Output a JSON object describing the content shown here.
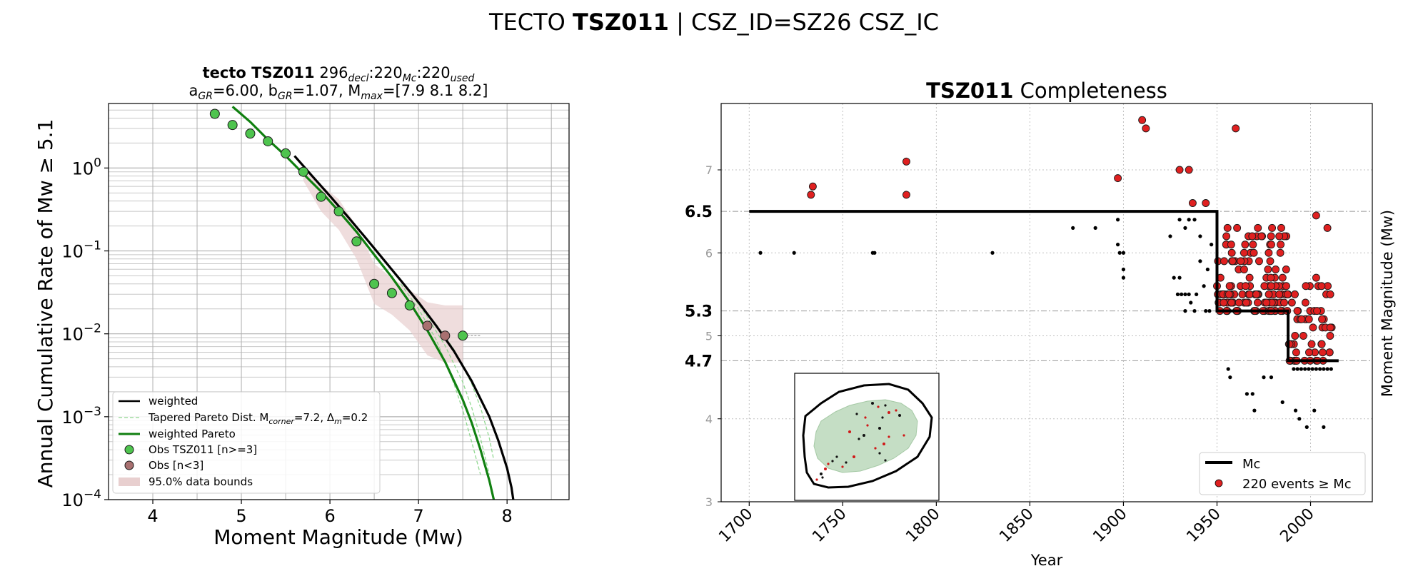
{
  "figure": {
    "suptitle": {
      "prefix": "TECTO ",
      "bold": "TSZ011",
      "suffix": " | CSZ_ID=SZ26 CSZ_IC"
    }
  },
  "chart_data": [
    {
      "type": "scatter",
      "panel": "left",
      "title_line1": {
        "bold": "tecto TSZ011",
        "a": "296",
        "a_sub": "decl",
        "b": ":220",
        "b_sub": "Mc",
        "c": ":220",
        "c_sub": "used"
      },
      "title_line2": {
        "p1": "a",
        "p1_sub": "GR",
        "p2": "=6.00,  b",
        "p2_sub": "GR",
        "p3": "=1.07, M",
        "p3_sub": "max",
        "p4": "=[7.9 8.1 8.2]"
      },
      "xlabel": "Moment Magnitude (Mw)",
      "ylabel": "Annual Cumulative Rate of Mw  ≥  5.1",
      "xlim": [
        3.5,
        8.7
      ],
      "ylim": [
        0.0001,
        6
      ],
      "yscale": "log",
      "x_ticks": [
        "4",
        "5",
        "6",
        "7",
        "8"
      ],
      "y_ticks": [
        {
          "base": "10",
          "exp": "0"
        },
        {
          "base": "10",
          "exp": "−1"
        },
        {
          "base": "10",
          "exp": "−2"
        },
        {
          "base": "10",
          "exp": "−3"
        },
        {
          "base": "10",
          "exp": "−4"
        }
      ],
      "grid": true,
      "series": [
        {
          "name": "weighted",
          "kind": "line",
          "color": "#000000",
          "x": [
            5.6,
            5.8,
            6.0,
            6.2,
            6.4,
            6.6,
            6.8,
            7.0,
            7.2,
            7.4,
            7.6,
            7.8,
            7.9,
            8.0,
            8.05,
            8.07
          ],
          "y": [
            1.4,
            0.8,
            0.46,
            0.26,
            0.145,
            0.08,
            0.044,
            0.024,
            0.0125,
            0.0062,
            0.0027,
            0.001,
            0.00052,
            0.00024,
            0.00014,
            0.0001
          ]
        },
        {
          "name": "Tapered Pareto Dist. M",
          "name_sub": "corner",
          "name_mid": "=7.2, Δ",
          "name_sub2": "m",
          "name_end": "=0.2",
          "kind": "dashed-line",
          "color": "#90d890",
          "curves": [
            {
              "x": [
                6.8,
                7.0,
                7.2,
                7.4,
                7.5,
                7.6,
                7.7
              ],
              "y": [
                0.04,
                0.02,
                0.0085,
                0.0025,
                0.0012,
                0.0005,
                0.0002
              ]
            },
            {
              "x": [
                6.9,
                7.1,
                7.3,
                7.5,
                7.6,
                7.7,
                7.8
              ],
              "y": [
                0.032,
                0.016,
                0.0072,
                0.0026,
                0.0013,
                0.00055,
                0.0002
              ]
            },
            {
              "x": [
                7.0,
                7.2,
                7.4,
                7.6,
                7.7,
                7.8,
                7.85
              ],
              "y": [
                0.024,
                0.013,
                0.0065,
                0.0025,
                0.0013,
                0.00055,
                0.0003
              ]
            }
          ]
        },
        {
          "name": "weighted Pareto",
          "kind": "line",
          "color": "#108010",
          "x": [
            4.9,
            5.1,
            5.3,
            5.5,
            5.7,
            5.9,
            6.1,
            6.3,
            6.5,
            6.7,
            6.9,
            7.1,
            7.3,
            7.5,
            7.6,
            7.7,
            7.8,
            7.85
          ],
          "y": [
            5.5,
            3.6,
            2.2,
            1.4,
            0.85,
            0.52,
            0.3,
            0.17,
            0.09,
            0.048,
            0.024,
            0.011,
            0.0046,
            0.0016,
            0.00085,
            0.0004,
            0.00017,
            0.0001
          ]
        },
        {
          "name": "Obs TSZ011 [n>=3]",
          "kind": "marker",
          "color": "#4ec44e",
          "x": [
            4.7,
            4.9,
            5.1,
            5.3,
            5.5,
            5.7,
            5.9,
            6.1,
            6.3,
            6.5,
            6.7,
            6.9,
            7.5
          ],
          "y": [
            4.5,
            3.3,
            2.6,
            2.1,
            1.5,
            0.9,
            0.45,
            0.3,
            0.13,
            0.04,
            0.031,
            0.022,
            0.0095
          ]
        },
        {
          "name": "Obs [n<3]",
          "kind": "marker",
          "color": "#a87070",
          "x": [
            7.1,
            7.3
          ],
          "y": [
            0.0125,
            0.0095
          ]
        },
        {
          "name": "95.0% data bounds",
          "kind": "band",
          "color": "#e8cfcf",
          "x": [
            5.7,
            5.9,
            6.1,
            6.3,
            6.5,
            6.7,
            6.9,
            7.1,
            7.3,
            7.5
          ],
          "lower": [
            0.7,
            0.3,
            0.18,
            0.08,
            0.023,
            0.017,
            0.011,
            0.0055,
            0.0045,
            0.0045
          ],
          "upper": [
            1.05,
            0.62,
            0.42,
            0.2,
            0.07,
            0.047,
            0.034,
            0.024,
            0.022,
            0.022
          ]
        }
      ],
      "legend": "lower-left"
    },
    {
      "type": "scatter",
      "panel": "right",
      "title": {
        "bold": "TSZ011",
        "rest": " Completeness"
      },
      "xlabel": "Year",
      "ylabel": "Moment Magnitude (Mw)",
      "xlim": [
        1685,
        2033
      ],
      "ylim": [
        3,
        7.8
      ],
      "x_ticks": [
        "1700",
        "1750",
        "1800",
        "1850",
        "1900",
        "1950",
        "2000"
      ],
      "y_ticks_minor": [
        "3",
        "4",
        "5",
        "6",
        "7"
      ],
      "y_ticks_bold": [
        "4.7",
        "5.3",
        "6.5"
      ],
      "grid": "dotted",
      "completeness_levels": [
        6.5,
        5.3,
        4.7
      ],
      "mc_step": {
        "name": "Mc",
        "color": "#000000",
        "x": [
          1700,
          1950,
          1950,
          1988,
          1988,
          2015
        ],
        "y": [
          6.5,
          6.5,
          5.3,
          5.3,
          4.7,
          4.7
        ]
      },
      "events_above_mc": {
        "name_count": "220",
        "name_text": "events  ≥  Mc",
        "color": "#e02020",
        "points": [
          [
            1733,
            6.7
          ],
          [
            1734,
            6.8
          ],
          [
            1784,
            7.1
          ],
          [
            1784,
            6.7
          ],
          [
            1897,
            6.9
          ],
          [
            1910,
            7.6
          ],
          [
            1912,
            7.5
          ],
          [
            1960,
            7.5
          ],
          [
            1930,
            7.0
          ],
          [
            1935,
            7.0
          ],
          [
            1937,
            6.6
          ],
          [
            1944,
            6.6
          ],
          [
            2003,
            6.45
          ],
          [
            2009,
            6.3
          ]
        ]
      },
      "events_below_mc": {
        "color": "#000000",
        "points": [
          [
            1706,
            6.0
          ],
          [
            1724,
            6.0
          ],
          [
            1766,
            6.0
          ],
          [
            1767,
            6.0
          ],
          [
            1830,
            6.0
          ],
          [
            1873,
            6.3
          ],
          [
            1885,
            6.3
          ],
          [
            1897,
            6.4
          ],
          [
            1897,
            6.1
          ],
          [
            1898,
            6.0
          ],
          [
            1900,
            6.0
          ],
          [
            1900,
            5.8
          ],
          [
            1900,
            5.7
          ],
          [
            1925,
            6.2
          ],
          [
            1930,
            6.4
          ],
          [
            1933,
            6.3
          ],
          [
            1935,
            6.4
          ],
          [
            1938,
            6.4
          ],
          [
            1927,
            5.7
          ],
          [
            1930,
            5.7
          ],
          [
            1933,
            5.5
          ],
          [
            1936,
            5.4
          ],
          [
            1929,
            5.5
          ],
          [
            1931,
            5.5
          ],
          [
            1935,
            5.5
          ],
          [
            1939,
            5.5
          ],
          [
            1941,
            5.9
          ],
          [
            1943,
            5.6
          ],
          [
            1945,
            5.8
          ],
          [
            1947,
            6.1
          ],
          [
            1941,
            6.2
          ],
          [
            1933,
            5.3
          ],
          [
            1938,
            5.3
          ],
          [
            1944,
            5.3
          ],
          [
            1946,
            5.3
          ],
          [
            1956,
            4.6
          ],
          [
            1957,
            4.5
          ],
          [
            1966,
            4.3
          ],
          [
            1969,
            4.3
          ],
          [
            1970,
            4.1
          ],
          [
            1975,
            4.5
          ],
          [
            1979,
            4.5
          ],
          [
            1985,
            4.2
          ],
          [
            1992,
            4.1
          ],
          [
            1994,
            4.0
          ],
          [
            1998,
            3.9
          ],
          [
            2002,
            4.1
          ],
          [
            2007,
            3.9
          ]
        ]
      },
      "legend": "lower-right"
    }
  ]
}
